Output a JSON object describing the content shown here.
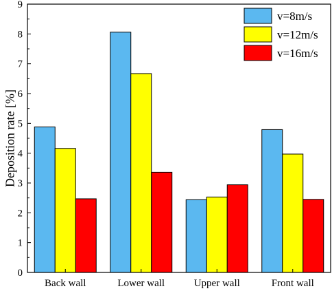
{
  "chart_data": {
    "type": "bar",
    "title": "",
    "xlabel": "",
    "ylabel": "Deposition rate [%]",
    "ylim": [
      0,
      9
    ],
    "yticks": [
      0,
      1,
      2,
      3,
      4,
      5,
      6,
      7,
      8,
      9
    ],
    "grid": false,
    "legend_position": "top-right",
    "categories": [
      "Back wall",
      "Lower wall",
      "Upper wall",
      "Front wall"
    ],
    "series": [
      {
        "name": "v=8m/s",
        "color": "#5bb8f0",
        "values": [
          4.88,
          8.06,
          2.44,
          4.79
        ]
      },
      {
        "name": "v=12m/s",
        "color": "#ffff00",
        "values": [
          4.16,
          6.67,
          2.53,
          3.97
        ]
      },
      {
        "name": "v=16m/s",
        "color": "#ff0000",
        "values": [
          2.47,
          3.36,
          2.94,
          2.45
        ]
      }
    ]
  }
}
